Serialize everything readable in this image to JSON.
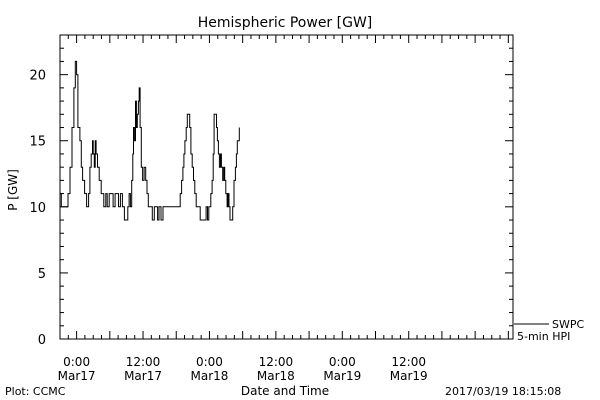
{
  "chart_data": {
    "type": "line",
    "title": "Hemispheric Power [GW]",
    "ylabel": "P [GW]",
    "xlabel": "Date and Time",
    "ylim": [
      0,
      23
    ],
    "xlim": [
      0,
      3.41
    ],
    "x_unit": "hours since 2017-03-16 21:00",
    "y_ticks": [
      0,
      5,
      10,
      15,
      20
    ],
    "x_ticks": [
      {
        "x": 0.125,
        "time": "0:00",
        "date": "Mar17"
      },
      {
        "x": 0.625,
        "time": "12:00",
        "date": "Mar17"
      },
      {
        "x": 1.125,
        "time": "0:00",
        "date": "Mar18"
      },
      {
        "x": 1.625,
        "time": "12:00",
        "date": "Mar18"
      },
      {
        "x": 2.125,
        "time": "0:00",
        "date": "Mar19"
      },
      {
        "x": 2.625,
        "time": "12:00",
        "date": "Mar19"
      }
    ],
    "grid": false,
    "legend": {
      "placement": "right-bottom",
      "source": "SWPC",
      "label": "5-min HPI"
    },
    "series": [
      {
        "color": "#000000",
        "points": [
          [
            0.0,
            11
          ],
          [
            0.01,
            10
          ],
          [
            0.03,
            10
          ],
          [
            0.05,
            10
          ],
          [
            0.06,
            11
          ],
          [
            0.075,
            13
          ],
          [
            0.09,
            16
          ],
          [
            0.105,
            19
          ],
          [
            0.115,
            21
          ],
          [
            0.125,
            20
          ],
          [
            0.135,
            16
          ],
          [
            0.15,
            15
          ],
          [
            0.16,
            13
          ],
          [
            0.17,
            12
          ],
          [
            0.185,
            11
          ],
          [
            0.2,
            10
          ],
          [
            0.215,
            11
          ],
          [
            0.225,
            13
          ],
          [
            0.235,
            14
          ],
          [
            0.245,
            15
          ],
          [
            0.25,
            14
          ],
          [
            0.258,
            13
          ],
          [
            0.265,
            15
          ],
          [
            0.272,
            14
          ],
          [
            0.282,
            13
          ],
          [
            0.295,
            12
          ],
          [
            0.31,
            11
          ],
          [
            0.32,
            11
          ],
          [
            0.33,
            10
          ],
          [
            0.345,
            11
          ],
          [
            0.355,
            10
          ],
          [
            0.37,
            11
          ],
          [
            0.385,
            11
          ],
          [
            0.4,
            10
          ],
          [
            0.415,
            11
          ],
          [
            0.425,
            11
          ],
          [
            0.44,
            10
          ],
          [
            0.455,
            11
          ],
          [
            0.47,
            10
          ],
          [
            0.485,
            9
          ],
          [
            0.5,
            9
          ],
          [
            0.51,
            10
          ],
          [
            0.52,
            11
          ],
          [
            0.53,
            10
          ],
          [
            0.54,
            12
          ],
          [
            0.548,
            14
          ],
          [
            0.553,
            16
          ],
          [
            0.56,
            15
          ],
          [
            0.568,
            18
          ],
          [
            0.575,
            16
          ],
          [
            0.582,
            17
          ],
          [
            0.59,
            18
          ],
          [
            0.596,
            19
          ],
          [
            0.603,
            16
          ],
          [
            0.612,
            13
          ],
          [
            0.622,
            12
          ],
          [
            0.633,
            13
          ],
          [
            0.645,
            12
          ],
          [
            0.655,
            11
          ],
          [
            0.665,
            10
          ],
          [
            0.68,
            10
          ],
          [
            0.695,
            9
          ],
          [
            0.71,
            10
          ],
          [
            0.72,
            10
          ],
          [
            0.735,
            9
          ],
          [
            0.745,
            10
          ],
          [
            0.76,
            9
          ],
          [
            0.775,
            10
          ],
          [
            0.8,
            10
          ],
          [
            0.83,
            10
          ],
          [
            0.86,
            10
          ],
          [
            0.89,
            10
          ],
          [
            0.905,
            11
          ],
          [
            0.915,
            12
          ],
          [
            0.925,
            13
          ],
          [
            0.933,
            14
          ],
          [
            0.94,
            15
          ],
          [
            0.95,
            16
          ],
          [
            0.958,
            17
          ],
          [
            0.968,
            17
          ],
          [
            0.976,
            16
          ],
          [
            0.985,
            14
          ],
          [
            0.995,
            13
          ],
          [
            1.005,
            12
          ],
          [
            1.015,
            11
          ],
          [
            1.025,
            10
          ],
          [
            1.035,
            10
          ],
          [
            1.045,
            10
          ],
          [
            1.055,
            9
          ],
          [
            1.07,
            9
          ],
          [
            1.085,
            9
          ],
          [
            1.1,
            10
          ],
          [
            1.11,
            9
          ],
          [
            1.12,
            10
          ],
          [
            1.135,
            11
          ],
          [
            1.145,
            12
          ],
          [
            1.153,
            14
          ],
          [
            1.16,
            17
          ],
          [
            1.17,
            17
          ],
          [
            1.178,
            16
          ],
          [
            1.185,
            15
          ],
          [
            1.192,
            14
          ],
          [
            1.2,
            13
          ],
          [
            1.208,
            14
          ],
          [
            1.215,
            13
          ],
          [
            1.225,
            12
          ],
          [
            1.233,
            13
          ],
          [
            1.24,
            12
          ],
          [
            1.248,
            11
          ],
          [
            1.258,
            10
          ],
          [
            1.265,
            11
          ],
          [
            1.272,
            10
          ],
          [
            1.28,
            9
          ],
          [
            1.29,
            9
          ],
          [
            1.3,
            10
          ],
          [
            1.31,
            12
          ],
          [
            1.32,
            13
          ],
          [
            1.328,
            14
          ],
          [
            1.335,
            15
          ],
          [
            1.345,
            15
          ],
          [
            1.35,
            16
          ]
        ]
      }
    ],
    "footer": {
      "left": "Plot: CCMC",
      "right": "2017/03/19 18:15:08"
    }
  }
}
